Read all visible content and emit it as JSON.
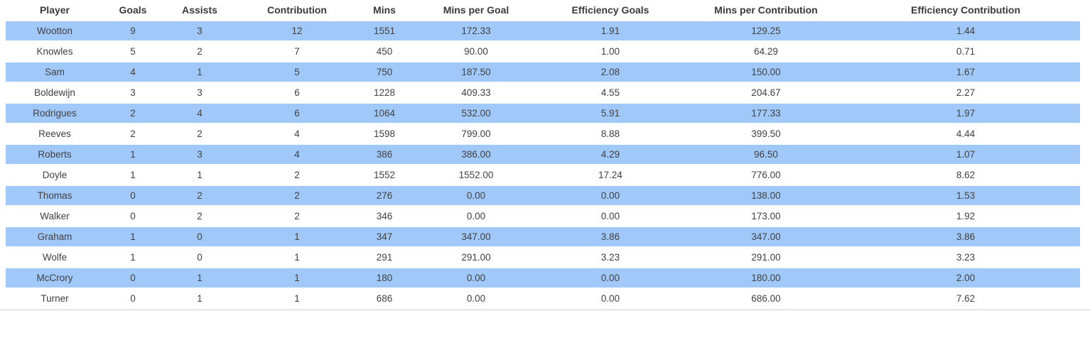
{
  "chart_data": {
    "type": "table",
    "columns": [
      "Player",
      "Goals",
      "Assists",
      "Contribution",
      "Mins",
      "Mins per Goal",
      "Efficiency Goals",
      "Mins per Contribution",
      "Efficiency Contribution"
    ],
    "rows": [
      [
        "Wootton",
        "9",
        "3",
        "12",
        "1551",
        "172.33",
        "1.91",
        "129.25",
        "1.44"
      ],
      [
        "Knowles",
        "5",
        "2",
        "7",
        "450",
        "90.00",
        "1.00",
        "64.29",
        "0.71"
      ],
      [
        "Sam",
        "4",
        "1",
        "5",
        "750",
        "187.50",
        "2.08",
        "150.00",
        "1.67"
      ],
      [
        "Boldewijn",
        "3",
        "3",
        "6",
        "1228",
        "409.33",
        "4.55",
        "204.67",
        "2.27"
      ],
      [
        "Rodrigues",
        "2",
        "4",
        "6",
        "1064",
        "532.00",
        "5.91",
        "177.33",
        "1.97"
      ],
      [
        "Reeves",
        "2",
        "2",
        "4",
        "1598",
        "799.00",
        "8.88",
        "399.50",
        "4.44"
      ],
      [
        "Roberts",
        "1",
        "3",
        "4",
        "386",
        "386.00",
        "4.29",
        "96.50",
        "1.07"
      ],
      [
        "Doyle",
        "1",
        "1",
        "2",
        "1552",
        "1552.00",
        "17.24",
        "776.00",
        "8.62"
      ],
      [
        "Thomas",
        "0",
        "2",
        "2",
        "276",
        "0.00",
        "0.00",
        "138.00",
        "1.53"
      ],
      [
        "Walker",
        "0",
        "2",
        "2",
        "346",
        "0.00",
        "0.00",
        "173.00",
        "1.92"
      ],
      [
        "Graham",
        "1",
        "0",
        "1",
        "347",
        "347.00",
        "3.86",
        "347.00",
        "3.86"
      ],
      [
        "Wolfe",
        "1",
        "0",
        "1",
        "291",
        "291.00",
        "3.23",
        "291.00",
        "3.23"
      ],
      [
        "McCrory",
        "0",
        "1",
        "1",
        "180",
        "0.00",
        "0.00",
        "180.00",
        "2.00"
      ],
      [
        "Turner",
        "0",
        "1",
        "1",
        "686",
        "0.00",
        "0.00",
        "686.00",
        "7.62"
      ]
    ],
    "layout": {
      "striped_row_indices": [
        0,
        2,
        4,
        6,
        8,
        10,
        12
      ],
      "grid": "off",
      "header_position": "top"
    }
  },
  "colors": {
    "row_stripe": "#A0C8F8",
    "row_plain": "#FFFFFF",
    "header_text": "#3A3A3A",
    "body_text": "#414141",
    "bottom_rule": "#CDCDCD",
    "background": "#FFFFFF"
  }
}
